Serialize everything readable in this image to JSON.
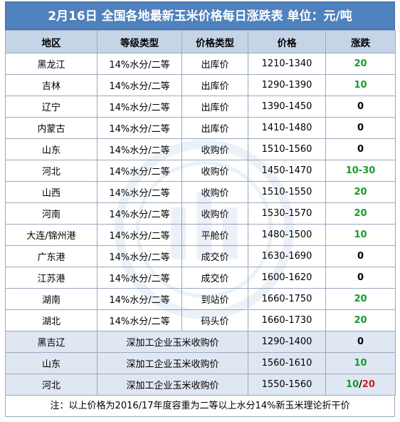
{
  "title": "2月16日  全国各地最新玉米价格每日涨跌表    单位：元/吨",
  "headers": [
    "地区",
    "等级类型",
    "价格类型",
    "价格",
    "涨跌"
  ],
  "rows": [
    {
      "region": "黑龙江",
      "grade": "14%水分/二等",
      "ptype": "出库价",
      "price": "1210-1340",
      "change": "20",
      "color": "green"
    },
    {
      "region": "吉林",
      "grade": "14%水分/二等",
      "ptype": "出库价",
      "price": "1290-1390",
      "change": "10",
      "color": "green"
    },
    {
      "region": "辽宁",
      "grade": "14%水分/二等",
      "ptype": "出库价",
      "price": "1390-1450",
      "change": "0",
      "color": "black"
    },
    {
      "region": "内蒙古",
      "grade": "14%水分/二等",
      "ptype": "出库价",
      "price": "1410-1480",
      "change": "0",
      "color": "black"
    },
    {
      "region": "山东",
      "grade": "14%水分/二等",
      "ptype": "收购价",
      "price": "1510-1560",
      "change": "0",
      "color": "black"
    },
    {
      "region": "河北",
      "grade": "14%水分/二等",
      "ptype": "收购价",
      "price": "1450-1470",
      "change": "10-30",
      "color": "green"
    },
    {
      "region": "山西",
      "grade": "14%水分/二等",
      "ptype": "收购价",
      "price": "1510-1550",
      "change": "20",
      "color": "green"
    },
    {
      "region": "河南",
      "grade": "14%水分/二等",
      "ptype": "收购价",
      "price": "1530-1570",
      "change": "20",
      "color": "green"
    },
    {
      "region": "大连/锦州港",
      "grade": "14%水分/二等",
      "ptype": "平舱价",
      "price": "1480-1500",
      "change": "10",
      "color": "green"
    },
    {
      "region": "广东港",
      "grade": "14%水分/二等",
      "ptype": "成交价",
      "price": "1630-1690",
      "change": "0",
      "color": "black"
    },
    {
      "region": "江苏港",
      "grade": "14%水分/二等",
      "ptype": "成交价",
      "price": "1600-1620",
      "change": "0",
      "color": "black"
    },
    {
      "region": "湖南",
      "grade": "14%水分/二等",
      "ptype": "到站价",
      "price": "1660-1750",
      "change": "20",
      "color": "green"
    },
    {
      "region": "湖北",
      "grade": "14%水分/二等",
      "ptype": "码头价",
      "price": "1660-1730",
      "change": "20",
      "color": "green"
    }
  ],
  "deep_rows": [
    {
      "region": "黑吉辽",
      "type": "深加工企业玉米收购价",
      "price": "1290-1400",
      "change": "0",
      "color": "black"
    },
    {
      "region": "山东",
      "type": "深加工企业玉米收购价",
      "price": "1560-1610",
      "change": "10",
      "color": "green"
    },
    {
      "region": "河北",
      "type": "深加工企业玉米收购价",
      "price": "1550-1560",
      "change_green": "10",
      "change_sep": "/",
      "change_red": "20"
    }
  ],
  "note": "注：以上价格为2016/17年度容重为二等以上水分14%新玉米理论折干价",
  "colors": {
    "header_bar": "#4f81bd",
    "col_header": "#c6d4e7",
    "deep_row": "#dfe7f2",
    "up": "#1a9a2a",
    "up_alt": "#d0201d"
  }
}
